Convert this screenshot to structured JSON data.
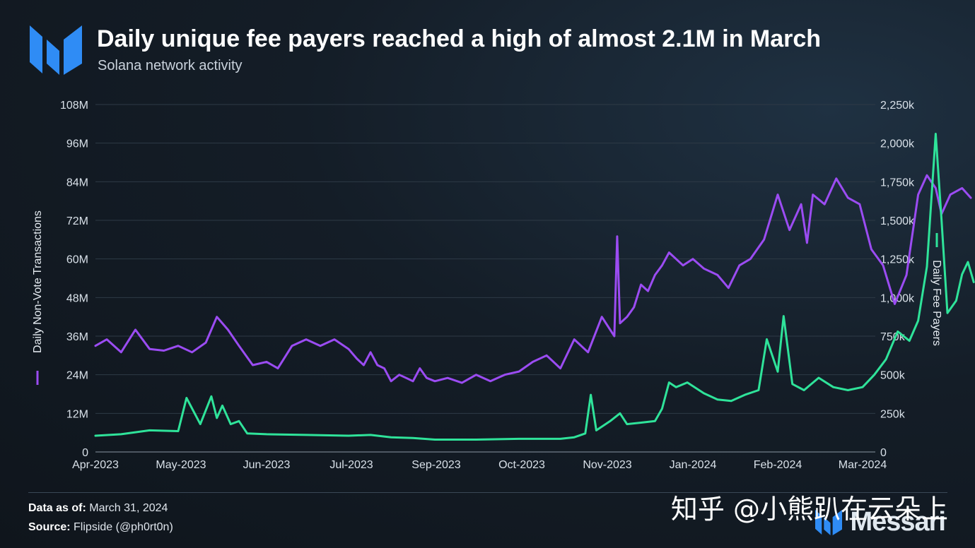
{
  "header": {
    "title": "Daily unique fee payers reached a high of almost 2.1M in March",
    "subtitle": "Solana network activity"
  },
  "footer": {
    "data_label": "Data as of:",
    "data_value": "March 31, 2024",
    "source_label": "Source:",
    "source_value": "Flipside (@ph0rt0n)"
  },
  "watermark": {
    "text": "知乎 @小熊趴在云朵上"
  },
  "brand": {
    "name": "Messari",
    "logo_icon": "messari-logo-icon"
  },
  "colors": {
    "transactions": "#9b4cf2",
    "fee_payers": "#2fe39a",
    "grid": "#2e3a46",
    "logo": "#2f8cf5"
  },
  "chart_data": {
    "type": "line",
    "title": "Daily unique fee payers reached a high of almost 2.1M in March",
    "subtitle": "Solana network activity",
    "x_tick_labels": [
      "Apr-2023",
      "May-2023",
      "Jun-2023",
      "Jul-2023",
      "Sep-2023",
      "Oct-2023",
      "Nov-2023",
      "Jan-2024",
      "Feb-2024",
      "Mar-2024"
    ],
    "x_tick_dates": [
      "2023-04-01",
      "2023-05-01",
      "2023-06-01",
      "2023-07-01",
      "2023-09-01",
      "2023-10-01",
      "2023-11-01",
      "2024-01-01",
      "2024-02-01",
      "2024-03-01"
    ],
    "y_left": {
      "label": "Daily Non-Vote Transactions",
      "ticks": [
        "0",
        "12M",
        "24M",
        "36M",
        "48M",
        "60M",
        "72M",
        "84M",
        "96M",
        "108M"
      ],
      "range": [
        0,
        108000000
      ]
    },
    "y_right": {
      "label": "Daily Fee Payers",
      "ticks": [
        "0",
        "250k",
        "500k",
        "750k",
        "1,000k",
        "1,250k",
        "1,500k",
        "1,750k",
        "2,000k",
        "2,250k"
      ],
      "range": [
        0,
        2250000
      ]
    },
    "grid": true,
    "series": [
      {
        "name": "Daily Non-Vote Transactions",
        "axis": "left",
        "color": "#9b4cf2",
        "points": [
          [
            "2023-04-01",
            33000000
          ],
          [
            "2023-04-05",
            35000000
          ],
          [
            "2023-04-10",
            31000000
          ],
          [
            "2023-04-15",
            38000000
          ],
          [
            "2023-04-20",
            32000000
          ],
          [
            "2023-04-25",
            31500000
          ],
          [
            "2023-04-30",
            33000000
          ],
          [
            "2023-05-05",
            31000000
          ],
          [
            "2023-05-10",
            34000000
          ],
          [
            "2023-05-14",
            42000000
          ],
          [
            "2023-05-18",
            38000000
          ],
          [
            "2023-05-22",
            33000000
          ],
          [
            "2023-05-27",
            27000000
          ],
          [
            "2023-06-01",
            28000000
          ],
          [
            "2023-06-05",
            26000000
          ],
          [
            "2023-06-10",
            33000000
          ],
          [
            "2023-06-15",
            35000000
          ],
          [
            "2023-06-20",
            33000000
          ],
          [
            "2023-06-25",
            35000000
          ],
          [
            "2023-06-30",
            32000000
          ],
          [
            "2023-07-05",
            29000000
          ],
          [
            "2023-07-10",
            27000000
          ],
          [
            "2023-07-15",
            31000000
          ],
          [
            "2023-07-20",
            27000000
          ],
          [
            "2023-07-25",
            26000000
          ],
          [
            "2023-07-30",
            22000000
          ],
          [
            "2023-08-05",
            24000000
          ],
          [
            "2023-08-10",
            23000000
          ],
          [
            "2023-08-15",
            22000000
          ],
          [
            "2023-08-20",
            26000000
          ],
          [
            "2023-08-25",
            23000000
          ],
          [
            "2023-08-31",
            22000000
          ],
          [
            "2023-09-05",
            23000000
          ],
          [
            "2023-09-10",
            21500000
          ],
          [
            "2023-09-15",
            24000000
          ],
          [
            "2023-09-20",
            22000000
          ],
          [
            "2023-09-25",
            24000000
          ],
          [
            "2023-09-30",
            25000000
          ],
          [
            "2023-10-05",
            28000000
          ],
          [
            "2023-10-10",
            30000000
          ],
          [
            "2023-10-15",
            26000000
          ],
          [
            "2023-10-20",
            35000000
          ],
          [
            "2023-10-25",
            31000000
          ],
          [
            "2023-10-30",
            42000000
          ],
          [
            "2023-11-03",
            38000000
          ],
          [
            "2023-11-06",
            36000000
          ],
          [
            "2023-11-08",
            67000000
          ],
          [
            "2023-11-10",
            40000000
          ],
          [
            "2023-11-15",
            42000000
          ],
          [
            "2023-11-20",
            45000000
          ],
          [
            "2023-11-25",
            52000000
          ],
          [
            "2023-11-30",
            50000000
          ],
          [
            "2023-12-05",
            55000000
          ],
          [
            "2023-12-10",
            58000000
          ],
          [
            "2023-12-15",
            62000000
          ],
          [
            "2023-12-20",
            60000000
          ],
          [
            "2023-12-25",
            58000000
          ],
          [
            "2024-01-01",
            60000000
          ],
          [
            "2024-01-05",
            57000000
          ],
          [
            "2024-01-10",
            55000000
          ],
          [
            "2024-01-14",
            51000000
          ],
          [
            "2024-01-18",
            58000000
          ],
          [
            "2024-01-22",
            60000000
          ],
          [
            "2024-01-27",
            66000000
          ],
          [
            "2024-02-01",
            80000000
          ],
          [
            "2024-02-05",
            69000000
          ],
          [
            "2024-02-09",
            77000000
          ],
          [
            "2024-02-11",
            65000000
          ],
          [
            "2024-02-13",
            80000000
          ],
          [
            "2024-02-17",
            77000000
          ],
          [
            "2024-02-21",
            85000000
          ],
          [
            "2024-02-25",
            79000000
          ],
          [
            "2024-02-29",
            77000000
          ],
          [
            "2024-03-04",
            63000000
          ],
          [
            "2024-03-08",
            58000000
          ],
          [
            "2024-03-12",
            46000000
          ],
          [
            "2024-03-16",
            55000000
          ],
          [
            "2024-03-20",
            80000000
          ],
          [
            "2024-03-23",
            86000000
          ],
          [
            "2024-03-26",
            82000000
          ],
          [
            "2024-03-28",
            74000000
          ],
          [
            "2024-03-31",
            80000000
          ],
          [
            "2024-04-04",
            82000000
          ],
          [
            "2024-04-07",
            79000000
          ]
        ]
      },
      {
        "name": "Daily Fee Payers",
        "axis": "right",
        "color": "#2fe39a",
        "points": [
          [
            "2023-04-01",
            105000
          ],
          [
            "2023-04-10",
            115000
          ],
          [
            "2023-04-20",
            140000
          ],
          [
            "2023-04-30",
            135000
          ],
          [
            "2023-05-03",
            350000
          ],
          [
            "2023-05-08",
            180000
          ],
          [
            "2023-05-12",
            360000
          ],
          [
            "2023-05-14",
            220000
          ],
          [
            "2023-05-16",
            300000
          ],
          [
            "2023-05-19",
            180000
          ],
          [
            "2023-05-22",
            200000
          ],
          [
            "2023-05-25",
            120000
          ],
          [
            "2023-06-01",
            115000
          ],
          [
            "2023-06-15",
            110000
          ],
          [
            "2023-06-30",
            105000
          ],
          [
            "2023-07-15",
            110000
          ],
          [
            "2023-07-30",
            95000
          ],
          [
            "2023-08-15",
            90000
          ],
          [
            "2023-08-31",
            80000
          ],
          [
            "2023-09-15",
            80000
          ],
          [
            "2023-09-30",
            85000
          ],
          [
            "2023-10-15",
            85000
          ],
          [
            "2023-10-20",
            95000
          ],
          [
            "2023-10-24",
            120000
          ],
          [
            "2023-10-26",
            370000
          ],
          [
            "2023-10-28",
            140000
          ],
          [
            "2023-11-03",
            200000
          ],
          [
            "2023-11-10",
            250000
          ],
          [
            "2023-11-15",
            180000
          ],
          [
            "2023-11-25",
            190000
          ],
          [
            "2023-12-05",
            200000
          ],
          [
            "2023-12-10",
            280000
          ],
          [
            "2023-12-15",
            450000
          ],
          [
            "2023-12-20",
            420000
          ],
          [
            "2023-12-28",
            450000
          ],
          [
            "2024-01-05",
            380000
          ],
          [
            "2024-01-10",
            340000
          ],
          [
            "2024-01-15",
            330000
          ],
          [
            "2024-01-20",
            370000
          ],
          [
            "2024-01-25",
            400000
          ],
          [
            "2024-01-28",
            730000
          ],
          [
            "2024-02-01",
            520000
          ],
          [
            "2024-02-03",
            880000
          ],
          [
            "2024-02-06",
            440000
          ],
          [
            "2024-02-10",
            400000
          ],
          [
            "2024-02-15",
            480000
          ],
          [
            "2024-02-20",
            420000
          ],
          [
            "2024-02-25",
            400000
          ],
          [
            "2024-03-01",
            420000
          ],
          [
            "2024-03-05",
            500000
          ],
          [
            "2024-03-09",
            600000
          ],
          [
            "2024-03-13",
            780000
          ],
          [
            "2024-03-17",
            720000
          ],
          [
            "2024-03-20",
            850000
          ],
          [
            "2024-03-23",
            1200000
          ],
          [
            "2024-03-26",
            2060000
          ],
          [
            "2024-03-28",
            1500000
          ],
          [
            "2024-03-30",
            900000
          ],
          [
            "2024-04-02",
            980000
          ],
          [
            "2024-04-04",
            1150000
          ],
          [
            "2024-04-06",
            1230000
          ],
          [
            "2024-04-08",
            1100000
          ]
        ]
      }
    ]
  }
}
